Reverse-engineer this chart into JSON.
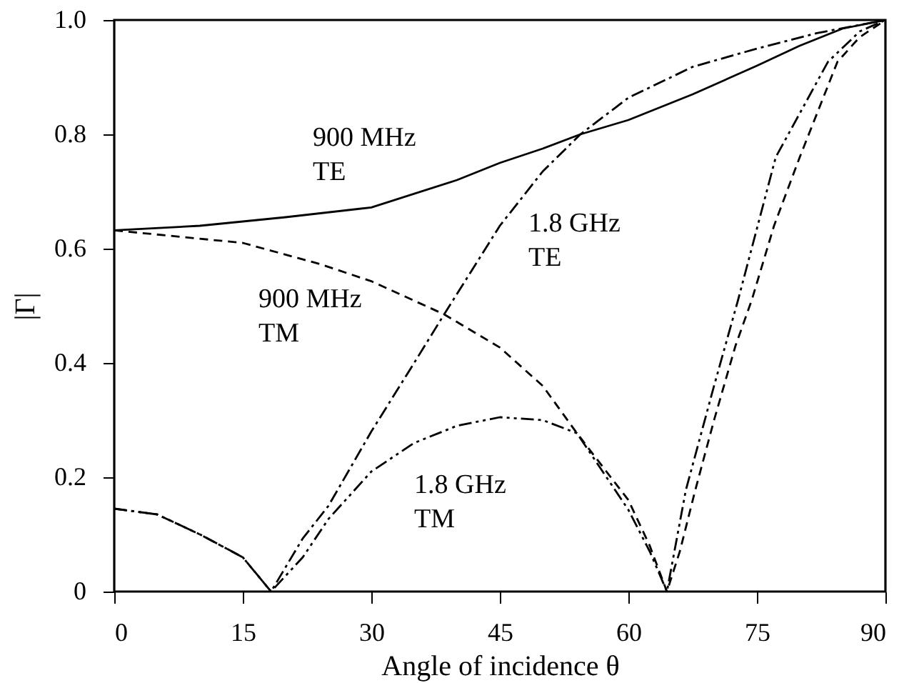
{
  "chart_data": {
    "type": "line",
    "xlabel": "Angle of incidence θ",
    "ylabel": "|Γ|",
    "xlim": [
      0,
      90
    ],
    "ylim": [
      0,
      1
    ],
    "xticks": [
      0,
      15,
      30,
      45,
      60,
      75,
      90
    ],
    "yticks": [
      0,
      0.2,
      0.4,
      0.6,
      0.8,
      {
        "value": 1,
        "label": "1.0"
      }
    ],
    "grid": false,
    "marker": "none",
    "series": [
      {
        "color": "#000000",
        "line_style": "solid",
        "x": [
          0,
          10,
          20,
          30,
          40,
          45,
          50,
          54.4,
          60,
          67.5,
          75,
          80,
          85,
          90
        ],
        "values": [
          0.632,
          0.64,
          0.655,
          0.672,
          0.72,
          0.75,
          0.775,
          0.8,
          0.825,
          0.87,
          0.92,
          0.955,
          0.985,
          1
        ]
      },
      {
        "color": "#000000",
        "line_style": "dashed",
        "x": [
          0,
          15,
          24,
          30,
          38.5,
          45,
          50,
          54,
          60,
          62.5,
          64.5,
          66,
          67.8,
          70,
          72.5,
          74.4,
          77,
          80,
          84.4,
          87,
          90
        ],
        "values": [
          0.632,
          0.61,
          0.573,
          0.543,
          0.485,
          0.427,
          0.36,
          0.277,
          0.16,
          0.08,
          0,
          0.07,
          0.177,
          0.3,
          0.43,
          0.51,
          0.64,
          0.76,
          0.927,
          0.97,
          1
        ]
      },
      {
        "color": "#000000",
        "line_style": "dashdot",
        "x": [
          0,
          5,
          10,
          15,
          18.3,
          22,
          25,
          30,
          35,
          38.5,
          45,
          50,
          54.4,
          60,
          67.5,
          75,
          82,
          90
        ],
        "values": [
          0.145,
          0.135,
          0.1,
          0.06,
          0,
          0.093,
          0.15,
          0.28,
          0.4,
          0.485,
          0.64,
          0.735,
          0.8,
          0.864,
          0.918,
          0.95,
          0.977,
          1
        ]
      },
      {
        "color": "#000000",
        "line_style": "dashdotdot",
        "x": [
          0,
          5,
          10,
          15,
          18.3,
          22,
          25,
          30,
          35,
          40,
          45,
          50,
          54,
          57,
          60,
          62.5,
          64.5,
          66.7,
          70,
          72.8,
          77.2,
          83.3,
          87,
          90
        ],
        "values": [
          0.145,
          0.135,
          0.1,
          0.06,
          0,
          0.06,
          0.127,
          0.21,
          0.26,
          0.29,
          0.305,
          0.3,
          0.277,
          0.21,
          0.143,
          0.07,
          0,
          0.177,
          0.36,
          0.51,
          0.76,
          0.927,
          0.98,
          1
        ]
      }
    ],
    "annotations": [
      "900 MHz\nTE",
      "900 MHz\nTM",
      "1.8 GHz\nTE",
      "1.8 GHz\nTM"
    ]
  }
}
